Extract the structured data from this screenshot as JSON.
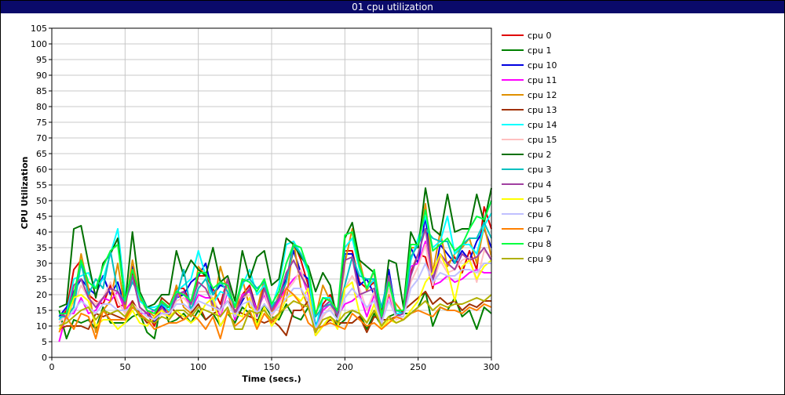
{
  "window": {
    "title": "01 cpu utilization"
  },
  "colors": {
    "title_bar": "#0a0a6a",
    "grid": "#c8c8c8"
  },
  "chart_data": {
    "type": "line",
    "title": "01 cpu utilization",
    "xlabel": "Time (secs.)",
    "ylabel": "CPU Utilization",
    "xlim": [
      0,
      300
    ],
    "ylim": [
      0,
      105
    ],
    "xticks": [
      0,
      50,
      100,
      150,
      200,
      250,
      300
    ],
    "yticks": [
      0,
      5,
      10,
      15,
      20,
      25,
      30,
      35,
      40,
      45,
      50,
      55,
      60,
      65,
      70,
      75,
      80,
      85,
      90,
      95,
      100,
      105
    ],
    "grid": true,
    "legend_position": "right",
    "x": [
      5,
      10,
      15,
      20,
      25,
      30,
      35,
      40,
      45,
      50,
      55,
      60,
      65,
      70,
      75,
      80,
      85,
      90,
      95,
      100,
      105,
      110,
      115,
      120,
      125,
      130,
      135,
      140,
      145,
      150,
      155,
      160,
      165,
      170,
      175,
      180,
      185,
      190,
      195,
      200,
      205,
      210,
      215,
      220,
      225,
      230,
      235,
      240,
      245,
      250,
      255,
      260,
      265,
      270,
      275,
      280,
      285,
      290,
      295,
      300
    ],
    "series": [
      {
        "name": "cpu 0",
        "color": "#e00000",
        "values": [
          12,
          15,
          28,
          31,
          20,
          18,
          17,
          23,
          16,
          17,
          27,
          16,
          14,
          10,
          16,
          16,
          22,
          22,
          17,
          26,
          26,
          22,
          17,
          25,
          14,
          20,
          23,
          15,
          23,
          17,
          18,
          24,
          37,
          31,
          23,
          8,
          17,
          20,
          14,
          34,
          34,
          24,
          22,
          24,
          14,
          26,
          14,
          14,
          27,
          33,
          32,
          22,
          33,
          30,
          32,
          27,
          34,
          28,
          48,
          41
        ]
      },
      {
        "name": "cpu 1",
        "color": "#008000",
        "values": [
          15,
          6,
          12,
          11,
          12,
          9,
          16,
          11,
          11,
          11,
          13,
          14,
          8,
          6,
          18,
          11,
          12,
          14,
          11,
          15,
          12,
          14,
          10,
          14,
          11,
          16,
          14,
          11,
          17,
          13,
          12,
          17,
          13,
          12,
          16,
          9,
          10,
          13,
          10,
          12,
          15,
          14,
          9,
          14,
          10,
          13,
          14,
          14,
          14,
          16,
          21,
          10,
          16,
          15,
          19,
          13,
          15,
          9,
          16,
          14
        ]
      },
      {
        "name": "cpu 10",
        "color": "#0000e0",
        "values": [
          13,
          16,
          21,
          25,
          22,
          20,
          26,
          20,
          24,
          16,
          29,
          19,
          15,
          11,
          17,
          13,
          19,
          20,
          24,
          26,
          30,
          20,
          23,
          22,
          14,
          18,
          22,
          15,
          21,
          15,
          19,
          25,
          34,
          27,
          25,
          10,
          16,
          18,
          13,
          33,
          33,
          23,
          25,
          20,
          14,
          28,
          14,
          14,
          35,
          30,
          45,
          23,
          36,
          33,
          30,
          34,
          31,
          37,
          41,
          35
        ]
      },
      {
        "name": "cpu 11",
        "color": "#ff00ff",
        "values": [
          5,
          14,
          14,
          19,
          14,
          15,
          19,
          18,
          21,
          15,
          18,
          14,
          14,
          15,
          14,
          15,
          19,
          21,
          15,
          20,
          19,
          19,
          13,
          21,
          12,
          20,
          21,
          15,
          20,
          14,
          18,
          22,
          25,
          27,
          20,
          8,
          15,
          17,
          13,
          17,
          18,
          20,
          13,
          20,
          11,
          20,
          13,
          14,
          29,
          30,
          37,
          23,
          24,
          26,
          24,
          25,
          27,
          28,
          27,
          27
        ]
      },
      {
        "name": "cpu 12",
        "color": "#e09000",
        "values": [
          10,
          12,
          18,
          33,
          22,
          8,
          15,
          18,
          30,
          15,
          31,
          19,
          15,
          13,
          18,
          14,
          23,
          16,
          14,
          29,
          26,
          15,
          29,
          21,
          13,
          25,
          16,
          15,
          25,
          14,
          20,
          18,
          37,
          22,
          16,
          13,
          23,
          18,
          12,
          30,
          41,
          31,
          21,
          28,
          14,
          20,
          17,
          14,
          35,
          35,
          49,
          27,
          40,
          29,
          33,
          35,
          38,
          30,
          42,
          32
        ]
      },
      {
        "name": "cpu 13",
        "color": "#a03000",
        "values": [
          9,
          10,
          10,
          10,
          9,
          14,
          13,
          14,
          13,
          12,
          18,
          14,
          11,
          12,
          19,
          17,
          14,
          12,
          14,
          17,
          12,
          14,
          15,
          18,
          15,
          14,
          13,
          12,
          11,
          12,
          10,
          7,
          15,
          15,
          18,
          7,
          10,
          12,
          11,
          11,
          11,
          13,
          8,
          13,
          12,
          12,
          13,
          15,
          17,
          19,
          21,
          17,
          19,
          17,
          18,
          15,
          17,
          16,
          18,
          18
        ]
      },
      {
        "name": "cpu 14",
        "color": "#00ffff",
        "values": [
          12,
          14,
          25,
          26,
          27,
          22,
          25,
          33,
          41,
          20,
          25,
          18,
          16,
          16,
          17,
          15,
          21,
          23,
          25,
          34,
          26,
          17,
          21,
          20,
          17,
          23,
          28,
          20,
          23,
          16,
          23,
          36,
          37,
          33,
          27,
          9,
          19,
          19,
          12,
          35,
          38,
          28,
          22,
          25,
          12,
          24,
          14,
          14,
          31,
          38,
          45,
          35,
          37,
          45,
          33,
          36,
          36,
          33,
          42,
          46
        ]
      },
      {
        "name": "cpu 15",
        "color": "#ffc0c0",
        "values": [
          11,
          14,
          17,
          23,
          19,
          17,
          19,
          24,
          18,
          14,
          17,
          15,
          13,
          12,
          14,
          13,
          18,
          19,
          16,
          21,
          21,
          19,
          14,
          22,
          14,
          19,
          20,
          14,
          21,
          13,
          17,
          21,
          24,
          28,
          21,
          8,
          13,
          16,
          13,
          22,
          26,
          22,
          15,
          21,
          10,
          22,
          12,
          13,
          24,
          29,
          36,
          23,
          31,
          27,
          28,
          31,
          32,
          24,
          34,
          32
        ]
      },
      {
        "name": "cpu 2",
        "color": "#007000",
        "values": [
          16,
          17,
          41,
          42,
          30,
          19,
          30,
          33,
          38,
          17,
          40,
          21,
          16,
          17,
          20,
          20,
          34,
          26,
          31,
          28,
          26,
          35,
          24,
          26,
          18,
          34,
          25,
          32,
          34,
          23,
          25,
          38,
          36,
          32,
          29,
          21,
          27,
          23,
          11,
          38,
          43,
          31,
          29,
          27,
          12,
          31,
          30,
          16,
          40,
          35,
          54,
          41,
          39,
          52,
          40,
          41,
          41,
          52,
          43,
          54
        ]
      },
      {
        "name": "cpu 3",
        "color": "#00c0c0",
        "values": [
          13,
          13,
          16,
          30,
          20,
          25,
          22,
          34,
          21,
          18,
          24,
          20,
          16,
          15,
          17,
          16,
          19,
          28,
          15,
          22,
          25,
          20,
          24,
          21,
          16,
          24,
          25,
          22,
          24,
          16,
          19,
          24,
          36,
          33,
          28,
          13,
          16,
          17,
          14,
          23,
          32,
          26,
          25,
          25,
          16,
          26,
          15,
          14,
          32,
          36,
          41,
          38,
          37,
          37,
          30,
          36,
          38,
          38,
          43,
          38
        ]
      },
      {
        "name": "cpu 4",
        "color": "#a040a0",
        "values": [
          14,
          13,
          23,
          25,
          19,
          16,
          19,
          22,
          21,
          17,
          26,
          16,
          14,
          12,
          16,
          13,
          20,
          21,
          17,
          24,
          22,
          17,
          15,
          25,
          14,
          19,
          22,
          13,
          22,
          15,
          19,
          27,
          31,
          26,
          22,
          8,
          16,
          18,
          13,
          31,
          32,
          20,
          21,
          22,
          11,
          26,
          13,
          14,
          26,
          33,
          41,
          25,
          33,
          30,
          28,
          33,
          31,
          32,
          35,
          31
        ]
      },
      {
        "name": "cpu 5",
        "color": "#ffff00",
        "values": [
          9,
          12,
          19,
          20,
          18,
          10,
          12,
          12,
          9,
          11,
          15,
          11,
          10,
          13,
          15,
          13,
          15,
          13,
          11,
          13,
          17,
          19,
          10,
          14,
          14,
          13,
          19,
          10,
          16,
          10,
          13,
          19,
          20,
          18,
          22,
          7,
          10,
          13,
          9,
          22,
          24,
          14,
          11,
          17,
          9,
          12,
          11,
          12,
          15,
          18,
          24,
          27,
          33,
          28,
          18,
          29,
          31,
          25,
          29,
          31
        ]
      },
      {
        "name": "cpu 6",
        "color": "#c0c0ff",
        "values": [
          10,
          12,
          15,
          18,
          16,
          14,
          17,
          17,
          15,
          15,
          16,
          15,
          13,
          12,
          14,
          14,
          17,
          17,
          15,
          18,
          17,
          16,
          15,
          18,
          13,
          17,
          18,
          14,
          17,
          14,
          16,
          19,
          22,
          22,
          18,
          9,
          14,
          15,
          12,
          19,
          22,
          19,
          16,
          18,
          11,
          18,
          13,
          13,
          22,
          25,
          30,
          24,
          27,
          26,
          26,
          28,
          28,
          27,
          30,
          30
        ]
      },
      {
        "name": "cpu 7",
        "color": "#ff8000",
        "values": [
          8,
          13,
          9,
          14,
          13,
          6,
          15,
          12,
          12,
          12,
          16,
          14,
          12,
          9,
          10,
          11,
          11,
          12,
          14,
          12,
          9,
          13,
          6,
          15,
          10,
          12,
          15,
          9,
          14,
          11,
          14,
          22,
          20,
          17,
          11,
          9,
          10,
          11,
          10,
          9,
          14,
          12,
          10,
          11,
          9,
          11,
          13,
          12,
          14,
          15,
          14,
          13,
          16,
          15,
          15,
          14,
          16,
          15,
          17,
          16
        ]
      },
      {
        "name": "cpu 8",
        "color": "#00ff40",
        "values": [
          14,
          14,
          20,
          31,
          24,
          22,
          29,
          34,
          36,
          18,
          28,
          20,
          15,
          14,
          18,
          16,
          21,
          20,
          18,
          27,
          27,
          22,
          24,
          23,
          16,
          25,
          24,
          21,
          25,
          17,
          21,
          30,
          36,
          35,
          28,
          14,
          19,
          18,
          15,
          39,
          40,
          29,
          22,
          28,
          13,
          24,
          15,
          15,
          36,
          36,
          47,
          34,
          36,
          38,
          34,
          36,
          41,
          45,
          44,
          50
        ]
      },
      {
        "name": "cpu 9",
        "color": "#b0b000",
        "values": [
          10,
          11,
          13,
          15,
          16,
          12,
          15,
          14,
          15,
          13,
          17,
          13,
          12,
          11,
          13,
          12,
          15,
          15,
          13,
          16,
          15,
          14,
          13,
          16,
          9,
          9,
          15,
          14,
          15,
          12,
          14,
          16,
          18,
          17,
          16,
          8,
          12,
          13,
          11,
          14,
          15,
          14,
          11,
          15,
          10,
          13,
          11,
          12,
          14,
          16,
          18,
          15,
          17,
          16,
          17,
          17,
          18,
          19,
          18,
          20
        ]
      }
    ]
  }
}
